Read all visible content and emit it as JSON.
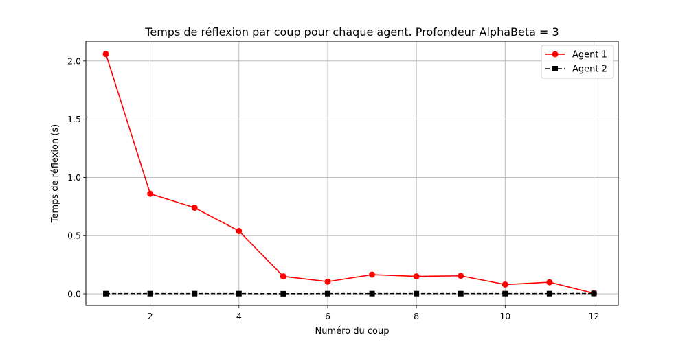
{
  "chart_data": {
    "type": "line",
    "title": "Temps de réflexion par coup pour chaque agent. Profondeur AlphaBeta = 3",
    "xlabel": "Numéro du coup",
    "ylabel": "Temps de réflexion (s)",
    "x": [
      1,
      2,
      3,
      4,
      5,
      6,
      7,
      8,
      9,
      10,
      11,
      12
    ],
    "xlim": [
      0.55,
      12.55
    ],
    "ylim": [
      -0.1,
      2.17
    ],
    "xticks": [
      2,
      4,
      6,
      8,
      10,
      12
    ],
    "xtick_labels": [
      "2",
      "4",
      "6",
      "8",
      "10",
      "12"
    ],
    "yticks": [
      0.0,
      0.5,
      1.0,
      1.5,
      2.0
    ],
    "ytick_labels": [
      "0.0",
      "0.5",
      "1.0",
      "1.5",
      "2.0"
    ],
    "grid": true,
    "legend_position": "top-right",
    "series": [
      {
        "name": "Agent 1",
        "color": "#ff0000",
        "marker": "circle",
        "line_style": "solid",
        "values": [
          2.06,
          0.86,
          0.74,
          0.54,
          0.15,
          0.105,
          0.165,
          0.15,
          0.155,
          0.08,
          0.1,
          0.005
        ]
      },
      {
        "name": "Agent 2",
        "color": "#000000",
        "marker": "square",
        "line_style": "dashed",
        "values": [
          0.002,
          0.002,
          0.002,
          0.002,
          0.001,
          0.002,
          0.002,
          0.002,
          0.002,
          0.002,
          0.002,
          0.003
        ]
      }
    ]
  }
}
